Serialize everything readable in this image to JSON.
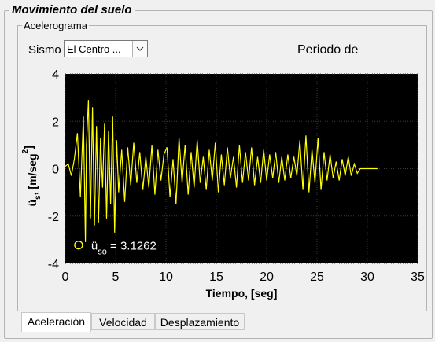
{
  "panel": {
    "title": "Movimiento del suelo",
    "subtitle": "Acelerograma"
  },
  "controls": {
    "sismo_label": "Sismo",
    "sismo_value": "El Centro  ...",
    "periodo_label": "Periodo de"
  },
  "tabs": [
    {
      "label": "Aceleración",
      "active": true
    },
    {
      "label": "Velocidad",
      "active": false
    },
    {
      "label": "Desplazamiento",
      "active": false
    }
  ],
  "colors": {
    "signal": "#ffff00",
    "plot_bg": "#000000",
    "grid": "#3a3a3a"
  },
  "chart_data": {
    "type": "line",
    "xlabel": "Tiempo, [seg]",
    "ylabel_main": "ü",
    "ylabel_sub": "s",
    "ylabel_units": ", [m/seg",
    "ylabel_sup": "2",
    "ylabel_close": "]",
    "xlim": [
      0,
      35
    ],
    "ylim": [
      -4,
      4
    ],
    "xticks": [
      0,
      5,
      10,
      15,
      20,
      25,
      30,
      35
    ],
    "yticks": [
      -4,
      -2,
      0,
      2,
      4
    ],
    "grid": true,
    "series": [
      {
        "x": [
          0,
          0.3,
          0.6,
          0.9,
          1.2,
          1.5,
          1.8,
          2.0,
          2.1,
          2.3,
          2.5,
          2.7,
          2.9,
          3.1,
          3.3,
          3.5,
          3.7,
          3.9,
          4.1,
          4.3,
          4.5,
          4.7,
          4.9,
          5.1,
          5.3,
          5.6,
          5.9,
          6.2,
          6.5,
          6.8,
          7.1,
          7.4,
          7.7,
          8.0,
          8.3,
          8.6,
          8.9,
          9.2,
          9.5,
          9.8,
          10.1,
          10.4,
          10.7,
          11.0,
          11.3,
          11.6,
          11.9,
          12.2,
          12.5,
          12.8,
          13.1,
          13.4,
          13.7,
          14.0,
          14.3,
          14.6,
          14.9,
          15.2,
          15.5,
          15.8,
          16.1,
          16.4,
          16.7,
          17.0,
          17.3,
          17.6,
          17.9,
          18.2,
          18.5,
          18.8,
          19.1,
          19.4,
          19.7,
          20.0,
          20.3,
          20.6,
          20.9,
          21.2,
          21.5,
          21.8,
          22.1,
          22.4,
          22.7,
          23.0,
          23.3,
          23.6,
          23.9,
          24.2,
          24.5,
          24.8,
          25.1,
          25.4,
          25.7,
          26.0,
          26.3,
          26.6,
          26.9,
          27.2,
          27.5,
          27.8,
          28.1,
          28.4,
          28.7,
          29.0,
          29.3,
          31.0
        ],
        "values": [
          0.1,
          0.2,
          -0.3,
          0.4,
          1.5,
          -1.2,
          2.2,
          -3.1,
          1.0,
          2.9,
          -2.1,
          2.6,
          -2.4,
          1.8,
          -2.3,
          1.3,
          -0.8,
          1.9,
          -2.1,
          1.6,
          -1.5,
          2.2,
          -2.7,
          1.2,
          -1.0,
          0.8,
          -1.4,
          0.9,
          -0.7,
          1.1,
          -0.6,
          0.7,
          -0.9,
          0.5,
          -0.8,
          1.0,
          -1.1,
          0.8,
          -0.5,
          0.6,
          0.9,
          -1.2,
          0.4,
          -1.5,
          1.3,
          -0.6,
          1.0,
          -1.1,
          0.7,
          -0.8,
          1.2,
          -0.6,
          0.5,
          -0.9,
          0.8,
          -0.5,
          1.1,
          -1.0,
          0.6,
          -0.7,
          0.9,
          -0.4,
          0.5,
          -0.8,
          1.0,
          -0.6,
          0.7,
          -0.5,
          0.9,
          -0.7,
          0.5,
          -0.6,
          0.8,
          -0.5,
          0.6,
          -0.4,
          0.7,
          -0.6,
          0.5,
          -0.5,
          0.6,
          -0.4,
          0.5,
          -0.3,
          1.2,
          -0.9,
          1.4,
          -1.0,
          0.8,
          -0.6,
          1.3,
          -0.9,
          0.7,
          -0.5,
          0.6,
          -0.4,
          0.3,
          -0.5,
          0.4,
          -0.3,
          0.5,
          -0.3,
          0.2,
          -0.2,
          0.0,
          0.0
        ]
      }
    ],
    "peak": {
      "x": 2.1,
      "y": -3.1262,
      "label_main": "ü",
      "label_sub": "so",
      "label_value": " = 3.1262"
    }
  }
}
